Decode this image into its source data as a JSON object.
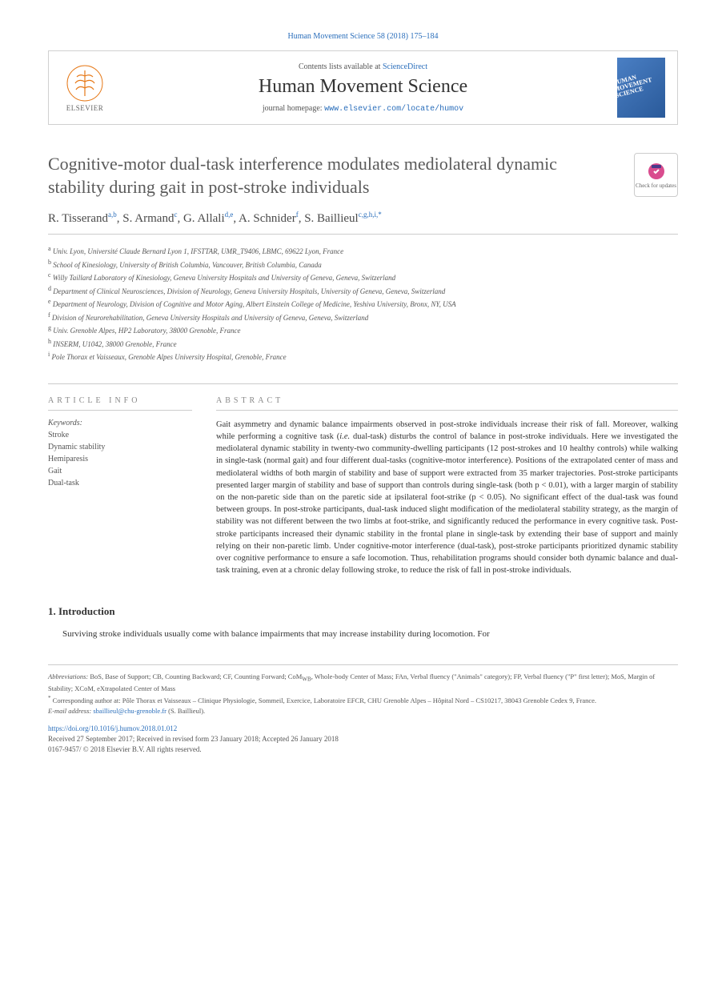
{
  "journal_ref": "Human Movement Science 58 (2018) 175–184",
  "header": {
    "elsevier_label": "ELSEVIER",
    "contents_prefix": "Contents lists available at ",
    "contents_link": "ScienceDirect",
    "journal_name": "Human Movement Science",
    "homepage_prefix": "journal homepage: ",
    "homepage_url": "www.elsevier.com/locate/humov",
    "cover_text": "HUMAN MOVEMENT SCIENCE"
  },
  "check_updates_label": "Check for updates",
  "title": "Cognitive-motor dual-task interference modulates mediolateral dynamic stability during gait in post-stroke individuals",
  "authors_html": "R. Tisserand<sup>a,b</sup>, S. Armand<sup>c</sup>, G. Allali<sup>d,e</sup>, A. Schnider<sup>f</sup>, S. Baillieul<sup>c,g,h,i,*</sup>",
  "affiliations": [
    "a|Univ. Lyon, Université Claude Bernard Lyon 1, IFSTTAR, UMR_T9406, LBMC, 69622 Lyon, France",
    "b|School of Kinesiology, University of British Columbia, Vancouver, British Columbia, Canada",
    "c|Willy Taillard Laboratory of Kinesiology, Geneva University Hospitals and University of Geneva, Geneva, Switzerland",
    "d|Department of Clinical Neurosciences, Division of Neurology, Geneva University Hospitals, University of Geneva, Geneva, Switzerland",
    "e|Department of Neurology, Division of Cognitive and Motor Aging, Albert Einstein College of Medicine, Yeshiva University, Bronx, NY, USA",
    "f|Division of Neurorehabilitation, Geneva University Hospitals and University of Geneva, Geneva, Switzerland",
    "g|Univ. Grenoble Alpes, HP2 Laboratory, 38000 Grenoble, France",
    "h|INSERM, U1042, 38000 Grenoble, France",
    "i|Pole Thorax et Vaisseaux, Grenoble Alpes University Hospital, Grenoble, France"
  ],
  "article_info_label": "ARTICLE INFO",
  "abstract_label": "ABSTRACT",
  "keywords_label": "Keywords:",
  "keywords": [
    "Stroke",
    "Dynamic stability",
    "Hemiparesis",
    "Gait",
    "Dual-task"
  ],
  "abstract_text": "Gait asymmetry and dynamic balance impairments observed in post-stroke individuals increase their risk of fall. Moreover, walking while performing a cognitive task (i.e. dual-task) disturbs the control of balance in post-stroke individuals. Here we investigated the mediolateral dynamic stability in twenty-two community-dwelling participants (12 post-strokes and 10 healthy controls) while walking in single-task (normal gait) and four different dual-tasks (cognitive-motor interference). Positions of the extrapolated center of mass and mediolateral widths of both margin of stability and base of support were extracted from 35 marker trajectories. Post-stroke participants presented larger margin of stability and base of support than controls during single-task (both p < 0.01), with a larger margin of stability on the non-paretic side than on the paretic side at ipsilateral foot-strike (p < 0.05). No significant effect of the dual-task was found between groups. In post-stroke participants, dual-task induced slight modification of the mediolateral stability strategy, as the margin of stability was not different between the two limbs at foot-strike, and significantly reduced the performance in every cognitive task. Post-stroke participants increased their dynamic stability in the frontal plane in single-task by extending their base of support and mainly relying on their non-paretic limb. Under cognitive-motor interference (dual-task), post-stroke participants prioritized dynamic stability over cognitive performance to ensure a safe locomotion. Thus, rehabilitation programs should consider both dynamic balance and dual-task training, even at a chronic delay following stroke, to reduce the risk of fall in post-stroke individuals.",
  "intro_heading": "1. Introduction",
  "intro_text": "Surviving stroke individuals usually come with balance impairments that may increase instability during locomotion. For",
  "footer": {
    "abbrev_label": "Abbreviations:",
    "abbrev_text": " BoS, Base of Support; CB, Counting Backward; CF, Counting Forward; CoM_WB, Whole-body Center of Mass; FAn, Verbal fluency (\"Animals\" category); FP, Verbal fluency (\"P\" first letter); MoS, Margin of Stability; XCoM, eXtrapolated Center of Mass",
    "corr_marker": "*",
    "corr_text": " Corresponding author at: Pôle Thorax et Vaisseaux – Clinique Physiologie, Sommeil, Exercice, Laboratoire EFCR, CHU Grenoble Alpes – Hôpital Nord – CS10217, 38043 Grenoble Cedex 9, France.",
    "email_label": "E-mail address: ",
    "email": "sbaillieul@chu-grenoble.fr",
    "email_author": " (S. Baillieul)."
  },
  "doi": {
    "link": "https://doi.org/10.1016/j.humov.2018.01.012",
    "received": "Received 27 September 2017; Received in revised form 23 January 2018; Accepted 26 January 2018",
    "copyright": "0167-9457/ © 2018 Elsevier B.V. All rights reserved."
  },
  "colors": {
    "link": "#2a6ebb",
    "text": "#333333",
    "border": "#cccccc",
    "heading_gray": "#5a5a5a"
  }
}
